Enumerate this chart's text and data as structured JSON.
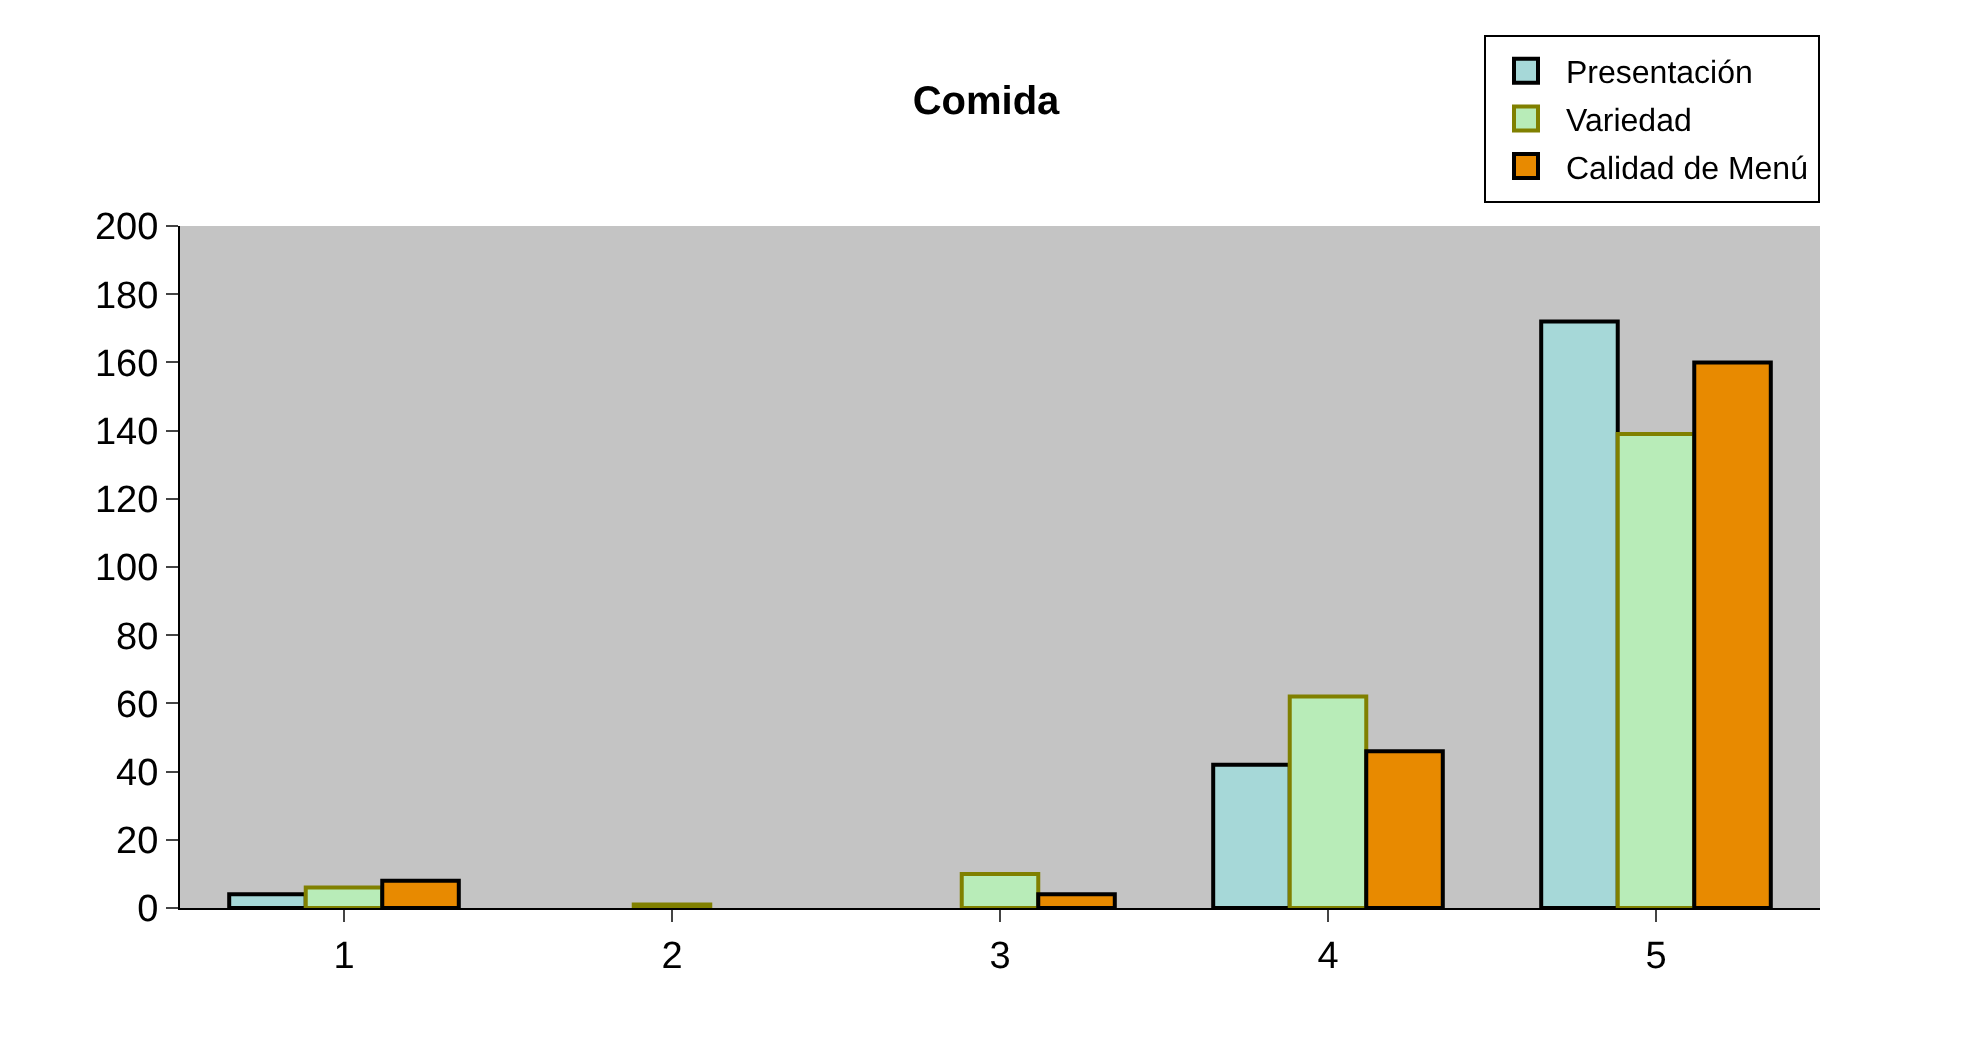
{
  "chart_data": {
    "type": "bar",
    "title": "Comida",
    "categories": [
      "1",
      "2",
      "3",
      "4",
      "5"
    ],
    "series": [
      {
        "name": "Presentación",
        "color": "#a6d8d8",
        "values": [
          4,
          0,
          0,
          42,
          172
        ]
      },
      {
        "name": "Variedad",
        "color": "#b8ecb8",
        "values": [
          6,
          1,
          10,
          62,
          139
        ]
      },
      {
        "name": "Calidad de Menú",
        "color": "#e88a00",
        "values": [
          8,
          0,
          4,
          46,
          160
        ]
      }
    ],
    "ylim": [
      0,
      200
    ],
    "yticks": [
      0,
      20,
      40,
      60,
      80,
      100,
      120,
      140,
      160,
      180,
      200
    ],
    "grid": false,
    "legend": "top right"
  }
}
